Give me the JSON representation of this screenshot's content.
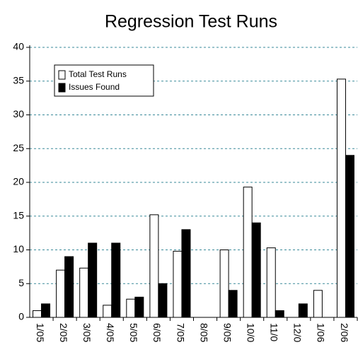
{
  "chart_data": {
    "type": "bar",
    "title": "Regression Test Runs",
    "categories": [
      "1/05",
      "2/05",
      "3/05",
      "4/05",
      "5/05",
      "6/05",
      "7/05",
      "8/05",
      "9/05",
      "10/0",
      "11/0",
      "12/0",
      "1/06",
      "2/06"
    ],
    "series": [
      {
        "name": "Total Test Runs",
        "color": "#ffffff",
        "values": [
          1,
          7,
          7.3,
          1.8,
          2.7,
          15.2,
          9.8,
          0,
          10,
          19.3,
          10.3,
          0,
          4,
          35.3
        ]
      },
      {
        "name": "Issues Found",
        "color": "#000000",
        "values": [
          2,
          9,
          11,
          11,
          3,
          5,
          13,
          0,
          4,
          14,
          1,
          2,
          0,
          24
        ]
      }
    ],
    "ylim": [
      0,
      40
    ],
    "yticks": [
      0,
      5,
      10,
      15,
      20,
      25,
      30,
      35,
      40
    ],
    "grid": true,
    "legend": "upper left"
  }
}
